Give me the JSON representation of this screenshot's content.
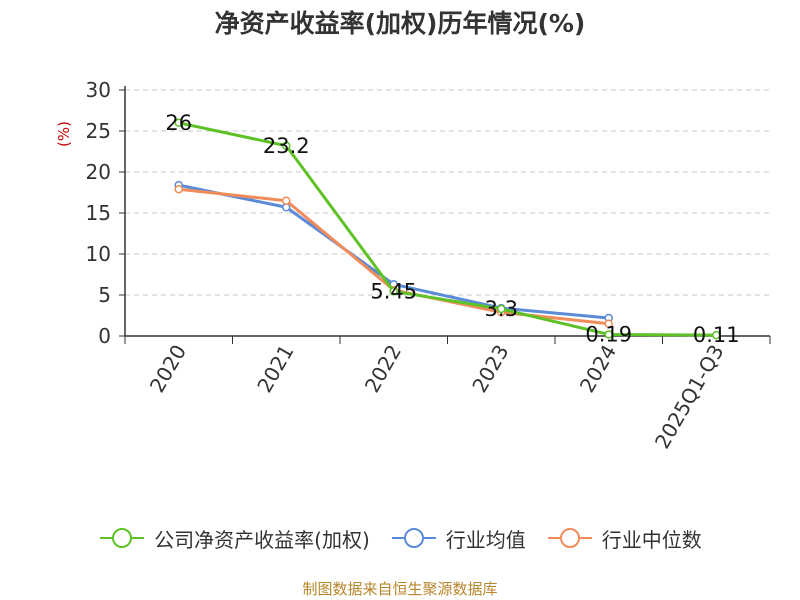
{
  "chart_data": {
    "type": "line",
    "title": "净资产收益率(加权)历年情况(%)",
    "ylabel": "(%)",
    "categories": [
      "2020",
      "2021",
      "2022",
      "2023",
      "2024",
      "2025Q1-Q3"
    ],
    "ylim": [
      0,
      30
    ],
    "yticks": [
      0,
      5,
      10,
      15,
      20,
      25,
      30
    ],
    "grid": true,
    "legend_position": "bottom",
    "series": [
      {
        "name": "公司净资产收益率(加权)",
        "color": "#5ec226",
        "values": [
          26,
          23.2,
          5.45,
          3.3,
          0.19,
          0.11
        ],
        "labels": [
          "26",
          "23.2",
          "5.45",
          "3.3",
          "0.19",
          "0.11"
        ]
      },
      {
        "name": "行业均值",
        "color": "#5b8ad8",
        "values": [
          18.4,
          15.7,
          6.3,
          3.4,
          2.2,
          null
        ]
      },
      {
        "name": "行业中位数",
        "color": "#f08c5a",
        "values": [
          17.9,
          16.5,
          5.6,
          2.9,
          1.5,
          null
        ]
      }
    ]
  },
  "source": "制图数据来自恒生聚源数据库"
}
